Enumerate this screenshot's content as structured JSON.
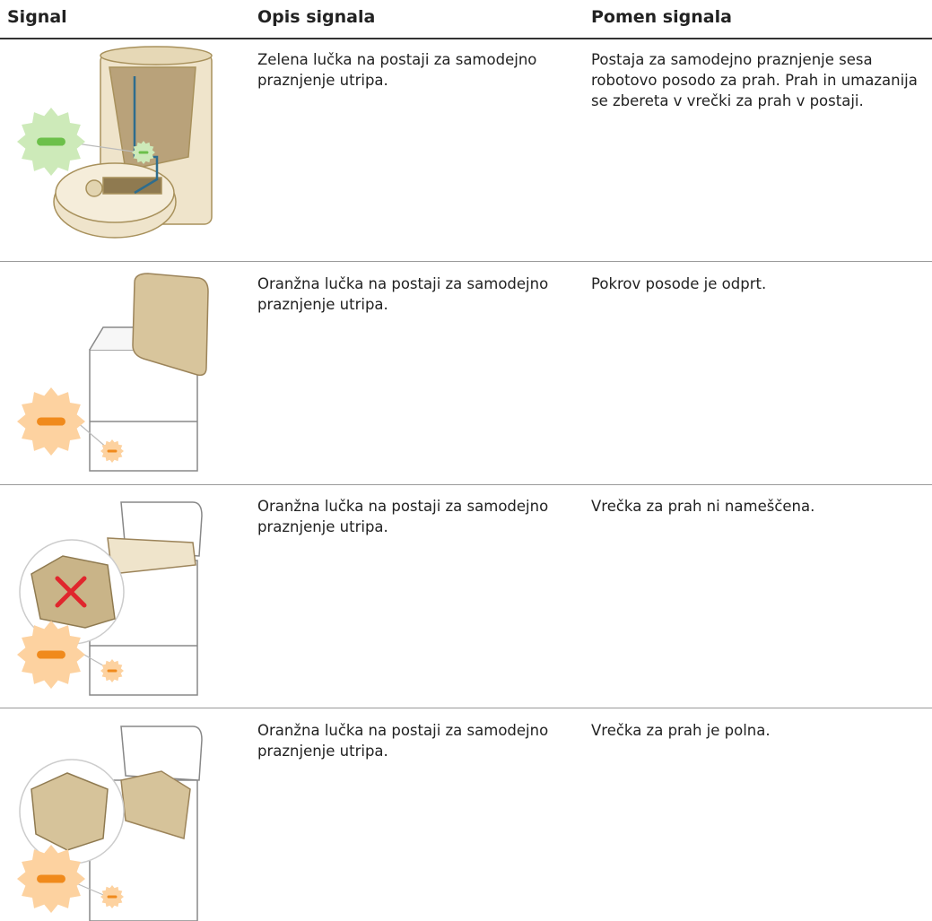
{
  "table": {
    "headers": [
      "Signal",
      "Opis signala",
      "Pomen signala"
    ],
    "rows": [
      {
        "description": "Zelena lučka na postaji za samodejno praznjenje utripa.",
        "meaning": "Postaja za samodejno praznjenje sesa robotovo posodo za prah. Prah in umazanija se zbereta v vrečki za prah v postaji."
      },
      {
        "description": "Oranžna lučka na postaji za samodejno praznjenje utripa.",
        "meaning": "Pokrov posode je odprt."
      },
      {
        "description": "Oranžna lučka na postaji za samodejno praznjenje utripa.",
        "meaning": "Vrečka za prah ni nameščena."
      },
      {
        "description": "Oranžna lučka na postaji za samodejno praznjenje utripa.",
        "meaning": "Vrečka za prah je polna."
      }
    ]
  }
}
